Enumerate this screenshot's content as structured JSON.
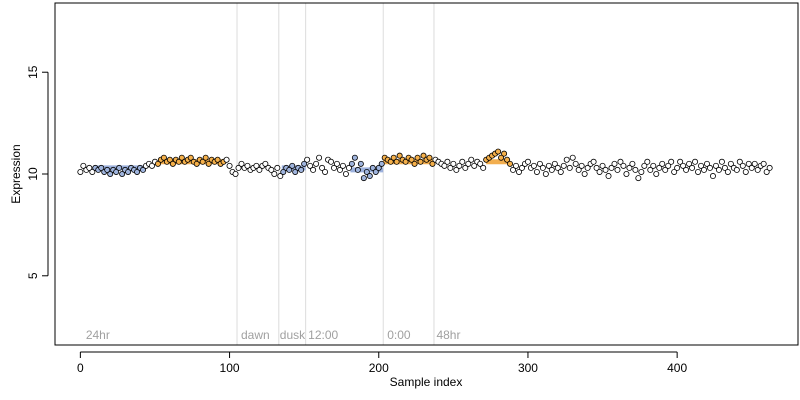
{
  "chart_data": {
    "type": "scatter",
    "title": "",
    "xlabel": "Sample index",
    "ylabel": "Expression",
    "xlim": [
      -17,
      481
    ],
    "ylim": [
      1.6,
      18.4
    ],
    "xticks": [
      0,
      100,
      200,
      300,
      400
    ],
    "yticks": [
      5,
      10,
      15
    ],
    "grid": false,
    "legend": "none",
    "colors": {
      "point_edge": "#000000",
      "point_fill_default": "#ffffff",
      "point_fill_high": "#f5b04a",
      "point_fill_low": "#9fb4dd",
      "segment_high": "#f0a030",
      "segment_low": "#8ca5d8",
      "vline": "#dcdcdc",
      "region_label": "#a0a0a0"
    },
    "vlines": [
      105,
      133,
      151,
      203,
      237
    ],
    "region_labels": [
      {
        "text": "24hr",
        "x": 3
      },
      {
        "text": "dawn",
        "x": 107
      },
      {
        "text": "dusk",
        "x": 133
      },
      {
        "text": "12:00",
        "x": 152
      },
      {
        "text": "0:00",
        "x": 205
      },
      {
        "text": "48hr",
        "x": 238
      }
    ],
    "segments": [
      {
        "x0": 10,
        "x1": 42,
        "y": 10.3,
        "kind": "low"
      },
      {
        "x0": 52,
        "x1": 97,
        "y": 10.6,
        "kind": "high"
      },
      {
        "x0": 135,
        "x1": 151,
        "y": 10.3,
        "kind": "low"
      },
      {
        "x0": 181,
        "x1": 203,
        "y": 10.2,
        "kind": "low"
      },
      {
        "x0": 203,
        "x1": 237,
        "y": 10.6,
        "kind": "high"
      },
      {
        "x0": 272,
        "x1": 288,
        "y": 10.6,
        "kind": "high"
      }
    ],
    "points": [
      [
        0,
        10.1
      ],
      [
        2,
        10.4
      ],
      [
        4,
        10.2
      ],
      [
        6,
        10.3
      ],
      [
        8,
        10.1
      ],
      [
        10,
        10.3
      ],
      [
        12,
        10.2
      ],
      [
        14,
        10.3
      ],
      [
        16,
        10.1
      ],
      [
        18,
        10.2
      ],
      [
        20,
        10.0
      ],
      [
        22,
        10.2
      ],
      [
        24,
        10.1
      ],
      [
        26,
        10.3
      ],
      [
        28,
        10.0
      ],
      [
        30,
        10.2
      ],
      [
        32,
        10.1
      ],
      [
        34,
        10.3
      ],
      [
        36,
        10.2
      ],
      [
        38,
        10.1
      ],
      [
        40,
        10.3
      ],
      [
        42,
        10.2
      ],
      [
        44,
        10.4
      ],
      [
        46,
        10.5
      ],
      [
        48,
        10.4
      ],
      [
        50,
        10.6
      ],
      [
        52,
        10.5
      ],
      [
        54,
        10.7
      ],
      [
        56,
        10.8
      ],
      [
        58,
        10.6
      ],
      [
        60,
        10.7
      ],
      [
        62,
        10.5
      ],
      [
        64,
        10.7
      ],
      [
        66,
        10.6
      ],
      [
        68,
        10.8
      ],
      [
        70,
        10.6
      ],
      [
        72,
        10.7
      ],
      [
        74,
        10.8
      ],
      [
        76,
        10.6
      ],
      [
        78,
        10.5
      ],
      [
        80,
        10.7
      ],
      [
        82,
        10.6
      ],
      [
        84,
        10.8
      ],
      [
        86,
        10.5
      ],
      [
        88,
        10.7
      ],
      [
        90,
        10.6
      ],
      [
        92,
        10.7
      ],
      [
        94,
        10.5
      ],
      [
        96,
        10.6
      ],
      [
        98,
        10.7
      ],
      [
        100,
        10.4
      ],
      [
        102,
        10.1
      ],
      [
        104,
        10.0
      ],
      [
        106,
        10.3
      ],
      [
        108,
        10.5
      ],
      [
        110,
        10.3
      ],
      [
        112,
        10.4
      ],
      [
        114,
        10.2
      ],
      [
        116,
        10.3
      ],
      [
        118,
        10.4
      ],
      [
        120,
        10.2
      ],
      [
        122,
        10.4
      ],
      [
        124,
        10.5
      ],
      [
        126,
        10.3
      ],
      [
        128,
        10.2
      ],
      [
        130,
        10.0
      ],
      [
        132,
        10.3
      ],
      [
        134,
        9.9
      ],
      [
        136,
        10.1
      ],
      [
        138,
        10.3
      ],
      [
        140,
        10.2
      ],
      [
        142,
        10.4
      ],
      [
        144,
        10.1
      ],
      [
        146,
        10.3
      ],
      [
        148,
        10.2
      ],
      [
        150,
        10.5
      ],
      [
        152,
        10.7
      ],
      [
        154,
        10.4
      ],
      [
        156,
        10.2
      ],
      [
        158,
        10.5
      ],
      [
        160,
        10.8
      ],
      [
        162,
        10.3
      ],
      [
        164,
        10.1
      ],
      [
        166,
        10.7
      ],
      [
        168,
        10.6
      ],
      [
        170,
        10.3
      ],
      [
        172,
        10.5
      ],
      [
        174,
        10.2
      ],
      [
        176,
        10.4
      ],
      [
        178,
        10.0
      ],
      [
        180,
        10.3
      ],
      [
        182,
        10.5
      ],
      [
        184,
        10.8
      ],
      [
        186,
        10.2
      ],
      [
        188,
        10.5
      ],
      [
        190,
        9.8
      ],
      [
        192,
        10.1
      ],
      [
        194,
        9.9
      ],
      [
        196,
        10.3
      ],
      [
        198,
        10.1
      ],
      [
        200,
        10.3
      ],
      [
        202,
        10.5
      ],
      [
        204,
        10.8
      ],
      [
        206,
        10.7
      ],
      [
        208,
        10.6
      ],
      [
        210,
        10.8
      ],
      [
        212,
        10.6
      ],
      [
        214,
        10.9
      ],
      [
        216,
        10.7
      ],
      [
        218,
        10.6
      ],
      [
        220,
        10.8
      ],
      [
        222,
        10.7
      ],
      [
        224,
        10.5
      ],
      [
        226,
        10.8
      ],
      [
        228,
        10.6
      ],
      [
        230,
        10.9
      ],
      [
        232,
        10.7
      ],
      [
        234,
        10.8
      ],
      [
        236,
        10.5
      ],
      [
        238,
        10.7
      ],
      [
        240,
        10.6
      ],
      [
        242,
        10.5
      ],
      [
        244,
        10.4
      ],
      [
        246,
        10.6
      ],
      [
        248,
        10.3
      ],
      [
        250,
        10.5
      ],
      [
        252,
        10.2
      ],
      [
        254,
        10.4
      ],
      [
        256,
        10.6
      ],
      [
        258,
        10.3
      ],
      [
        260,
        10.5
      ],
      [
        262,
        10.7
      ],
      [
        264,
        10.4
      ],
      [
        266,
        10.6
      ],
      [
        268,
        10.5
      ],
      [
        270,
        10.3
      ],
      [
        272,
        10.7
      ],
      [
        274,
        10.8
      ],
      [
        276,
        10.9
      ],
      [
        278,
        11.0
      ],
      [
        280,
        11.1
      ],
      [
        282,
        10.8
      ],
      [
        284,
        11.0
      ],
      [
        286,
        10.7
      ],
      [
        288,
        10.5
      ],
      [
        290,
        10.2
      ],
      [
        292,
        10.4
      ],
      [
        294,
        10.1
      ],
      [
        296,
        10.3
      ],
      [
        298,
        10.5
      ],
      [
        300,
        10.6
      ],
      [
        302,
        10.3
      ],
      [
        304,
        10.4
      ],
      [
        306,
        10.1
      ],
      [
        308,
        10.5
      ],
      [
        310,
        10.3
      ],
      [
        312,
        10.0
      ],
      [
        314,
        10.4
      ],
      [
        316,
        10.2
      ],
      [
        318,
        10.5
      ],
      [
        320,
        10.3
      ],
      [
        322,
        10.1
      ],
      [
        324,
        10.4
      ],
      [
        326,
        10.7
      ],
      [
        328,
        10.3
      ],
      [
        330,
        10.8
      ],
      [
        332,
        10.5
      ],
      [
        334,
        10.2
      ],
      [
        336,
        10.4
      ],
      [
        338,
        10.0
      ],
      [
        340,
        10.3
      ],
      [
        342,
        10.5
      ],
      [
        344,
        10.6
      ],
      [
        346,
        10.3
      ],
      [
        348,
        10.1
      ],
      [
        350,
        10.4
      ],
      [
        352,
        10.2
      ],
      [
        354,
        9.9
      ],
      [
        356,
        10.3
      ],
      [
        358,
        10.5
      ],
      [
        360,
        10.2
      ],
      [
        362,
        10.6
      ],
      [
        364,
        10.4
      ],
      [
        366,
        10.0
      ],
      [
        368,
        10.3
      ],
      [
        370,
        10.5
      ],
      [
        372,
        10.2
      ],
      [
        374,
        9.8
      ],
      [
        376,
        10.1
      ],
      [
        378,
        10.4
      ],
      [
        380,
        10.6
      ],
      [
        382,
        10.2
      ],
      [
        384,
        10.4
      ],
      [
        386,
        10.0
      ],
      [
        388,
        10.3
      ],
      [
        390,
        10.5
      ],
      [
        392,
        10.2
      ],
      [
        394,
        10.4
      ],
      [
        396,
        10.6
      ],
      [
        398,
        10.1
      ],
      [
        400,
        10.3
      ],
      [
        402,
        10.6
      ],
      [
        404,
        10.4
      ],
      [
        406,
        10.2
      ],
      [
        408,
        10.5
      ],
      [
        410,
        10.3
      ],
      [
        412,
        10.6
      ],
      [
        414,
        10.1
      ],
      [
        416,
        10.4
      ],
      [
        418,
        10.2
      ],
      [
        420,
        10.5
      ],
      [
        422,
        10.3
      ],
      [
        424,
        9.9
      ],
      [
        426,
        10.4
      ],
      [
        428,
        10.2
      ],
      [
        430,
        10.6
      ],
      [
        432,
        10.3
      ],
      [
        434,
        10.1
      ],
      [
        436,
        10.5
      ],
      [
        438,
        10.3
      ],
      [
        440,
        10.2
      ],
      [
        442,
        10.6
      ],
      [
        444,
        10.4
      ],
      [
        446,
        10.1
      ],
      [
        448,
        10.5
      ],
      [
        450,
        10.3
      ],
      [
        452,
        10.5
      ],
      [
        454,
        10.2
      ],
      [
        456,
        10.4
      ],
      [
        458,
        10.5
      ],
      [
        460,
        10.1
      ],
      [
        462,
        10.3
      ]
    ]
  }
}
